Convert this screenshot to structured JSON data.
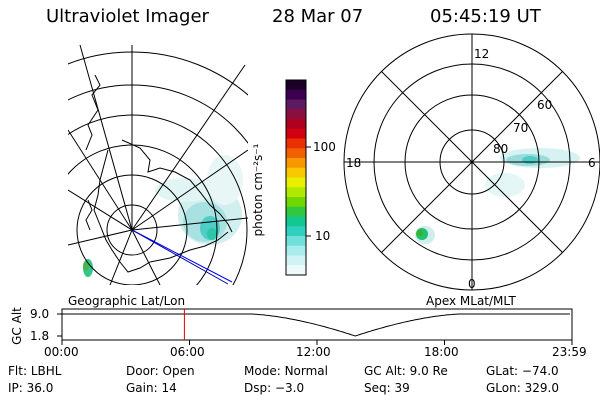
{
  "header": {
    "title": "Ultraviolet Imager",
    "date": "28 Mar 07",
    "time": "05:45:19 UT"
  },
  "colorbar": {
    "unit_label": "photon cm⁻²s⁻¹",
    "tick_labels": [
      "100",
      "10"
    ],
    "colors": [
      "#1a0026",
      "#3d0050",
      "#5c1a60",
      "#8a1040",
      "#b00020",
      "#d00010",
      "#e83000",
      "#f06000",
      "#f89800",
      "#f8c800",
      "#e8f000",
      "#b0e800",
      "#70d800",
      "#30c840",
      "#10c890",
      "#30d0c0",
      "#70e0d8",
      "#a8ecec",
      "#d0f4f4",
      "#eefafa"
    ]
  },
  "maps": {
    "geographic_label": "Geographic Lat/Lon",
    "apex_label": "Apex MLat/MLT",
    "apex_mlt_labels": [
      "12",
      "18",
      "6",
      "0"
    ],
    "apex_lat_labels": [
      "60",
      "70",
      "80"
    ]
  },
  "altitude_plot": {
    "ylabel": "GC Alt",
    "y_ticks": [
      "9.0",
      "1.8"
    ],
    "x_ticks": [
      "00:00",
      "06:00",
      "12:00",
      "18:00",
      "23:59"
    ],
    "current_marker_hours": 5.76,
    "perigee_hours": 13.8,
    "marker_color": "#e00000"
  },
  "info": {
    "row1": [
      {
        "label": "Flt:",
        "value": "LBHL"
      },
      {
        "label": "Door:",
        "value": "Open"
      },
      {
        "label": "Mode:",
        "value": "Normal"
      },
      {
        "label": "GC Alt:",
        "value": "9.0 Re"
      },
      {
        "label": "GLat:",
        "value": "−74.0"
      }
    ],
    "row2": [
      {
        "label": "IP:",
        "value": "36.0"
      },
      {
        "label": "Gain:",
        "value": "14"
      },
      {
        "label": "Dsp:",
        "value": "−3.0"
      },
      {
        "label": "Seq:",
        "value": "39"
      },
      {
        "label": "GLon:",
        "value": "329.0"
      }
    ]
  }
}
